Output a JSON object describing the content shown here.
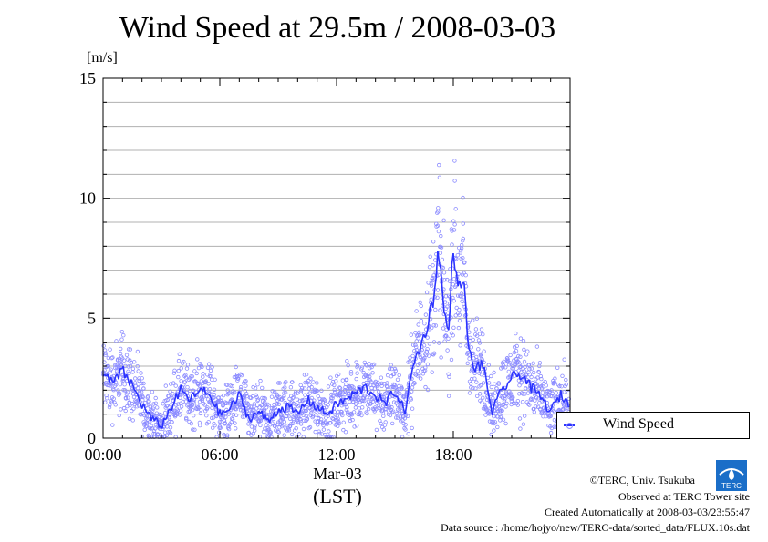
{
  "chart_data": {
    "type": "scatter",
    "title": "Wind Speed at 29.5m / 2008-03-03",
    "ylabel": "[m/s]",
    "ylim": [
      0,
      15
    ],
    "yticks": [
      "0",
      "5",
      "10",
      "15"
    ],
    "xlim": [
      "00:00",
      "24:00"
    ],
    "xticks": [
      "00:00",
      "06:00",
      "12:00",
      "18:00"
    ],
    "xsublabel_date": "Mar-03",
    "xsublabel_tz": "(LST)",
    "grid": true,
    "legend_position": "right",
    "series": [
      {
        "name": "Wind Speed",
        "color": "#2b33ff",
        "point_color": "#8c8cff",
        "x_hours": [
          0.0,
          0.5,
          1.0,
          1.5,
          2.0,
          2.5,
          3.0,
          3.5,
          4.0,
          4.5,
          5.0,
          5.5,
          6.0,
          6.5,
          7.0,
          7.5,
          8.0,
          8.5,
          9.0,
          9.5,
          10.0,
          10.5,
          11.0,
          11.5,
          12.0,
          12.5,
          13.0,
          13.5,
          14.0,
          14.5,
          15.0,
          15.5,
          16.0,
          16.5,
          17.0,
          17.25,
          17.5,
          17.75,
          18.0,
          18.25,
          18.5,
          18.75,
          19.0,
          19.5,
          20.0,
          20.5,
          21.0,
          21.5,
          22.0,
          22.5,
          23.0,
          23.5,
          23.9
        ],
        "values": [
          2.6,
          2.3,
          2.8,
          2.2,
          1.4,
          0.8,
          0.5,
          1.3,
          2.0,
          1.6,
          2.0,
          1.8,
          1.0,
          1.2,
          1.8,
          0.8,
          1.1,
          0.7,
          1.2,
          1.3,
          1.0,
          1.6,
          1.3,
          1.0,
          1.4,
          1.6,
          1.9,
          2.1,
          1.8,
          1.4,
          2.0,
          1.1,
          3.2,
          4.2,
          5.9,
          8.0,
          5.4,
          4.3,
          8.1,
          6.0,
          6.9,
          4.0,
          2.9,
          3.1,
          1.1,
          2.0,
          2.5,
          2.7,
          2.1,
          1.7,
          1.1,
          1.8,
          1.5
        ]
      }
    ]
  },
  "footer": {
    "copyright": "©TERC, Univ. Tsukuba",
    "site": "Observed at TERC Tower site",
    "created": "Created Automatically at 2008-03-03/23:55:47",
    "source": "Data source : /home/hojyo/new/TERC-data/sorted_data/FLUX.10s.dat"
  },
  "logo_text": "TERC"
}
